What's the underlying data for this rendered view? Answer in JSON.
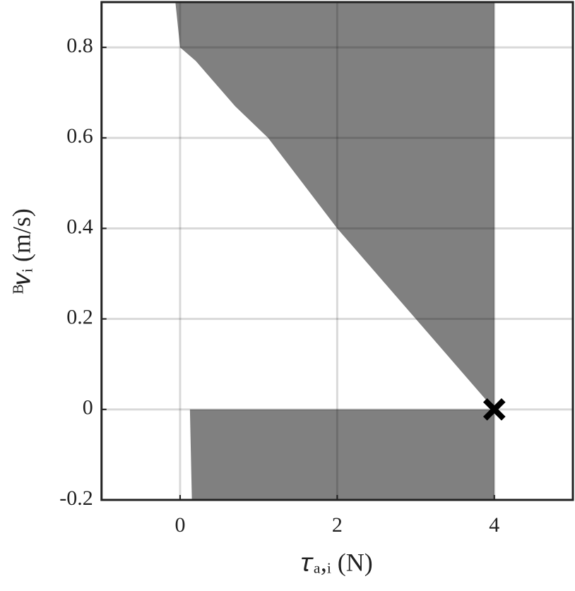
{
  "chart_data": {
    "type": "region",
    "xlabel": "𝜏ₐ,ᵢ (N)",
    "ylabel": "ᴮ𝑣ᵢ (m/s)",
    "xlim": [
      -1,
      5
    ],
    "xticks": [
      0,
      2,
      4
    ],
    "ylim": [
      -0.2,
      0.9
    ],
    "yticks": [
      -0.2,
      0,
      0.2,
      0.4,
      0.6,
      0.8
    ],
    "grid": true,
    "regions": [
      {
        "color": "#808080",
        "x": [
          -0.06,
          0.0,
          0.2,
          0.4,
          0.7,
          1.12,
          2.0,
          3.0,
          4.0,
          4.0
        ],
        "y": [
          0.9,
          0.8,
          0.77,
          0.73,
          0.67,
          0.6,
          0.4,
          0.2,
          0.0,
          0.9
        ]
      },
      {
        "color": "#808080",
        "x": [
          0.125,
          4.0,
          4.0,
          0.15
        ],
        "y": [
          0.0,
          0.0,
          -0.2,
          -0.2
        ]
      }
    ],
    "marker": {
      "x": 4,
      "y": 0,
      "color": "#000000"
    }
  }
}
